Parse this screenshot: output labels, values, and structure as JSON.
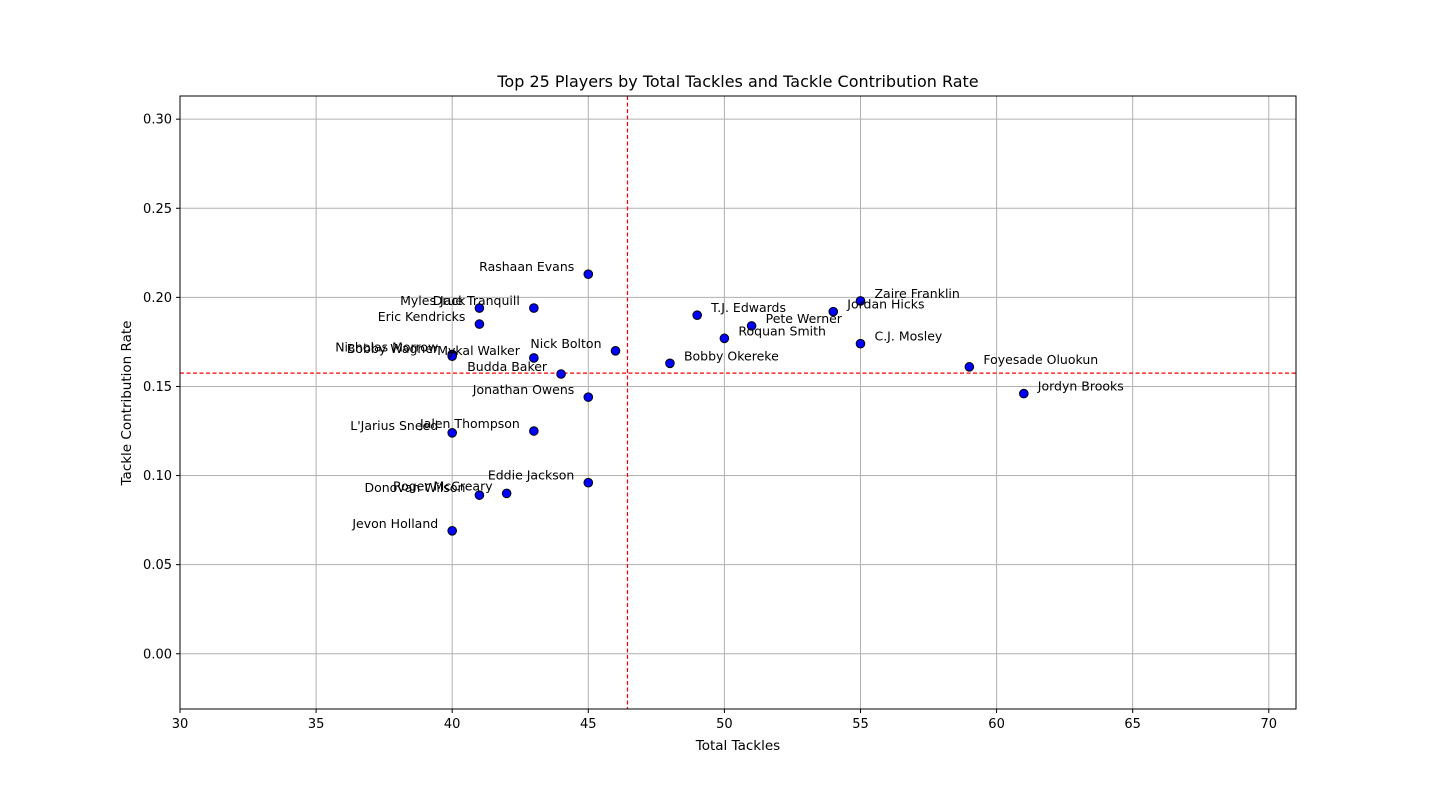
{
  "chart_data": {
    "type": "scatter",
    "title": "Top 25 Players by Total Tackles and Tackle Contribution Rate",
    "xlabel": "Total Tackles",
    "ylabel": "Tackle Contribution Rate",
    "xlim": [
      30,
      71
    ],
    "ylim": [
      -0.031,
      0.313
    ],
    "x_ticks": [
      30,
      35,
      40,
      45,
      50,
      55,
      60,
      65,
      70
    ],
    "y_ticks": [
      0.0,
      0.05,
      0.1,
      0.15,
      0.2,
      0.25,
      0.3
    ],
    "x_tick_labels": [
      "30",
      "35",
      "40",
      "45",
      "50",
      "55",
      "60",
      "65",
      "70"
    ],
    "y_tick_labels": [
      "0.00",
      "0.05",
      "0.10",
      "0.15",
      "0.20",
      "0.25",
      "0.30"
    ],
    "grid": true,
    "reference_lines": {
      "vertical_x": 46.44,
      "horizontal_y": 0.1575,
      "color": "#ff0000",
      "style": "dashed"
    },
    "marker_color": "#0000ff",
    "marker_edge_color": "#000000",
    "points": [
      {
        "label": "Rashaan Evans",
        "x": 45,
        "y": 0.213,
        "align": "left"
      },
      {
        "label": "Myles Jack",
        "x": 41,
        "y": 0.194,
        "align": "left"
      },
      {
        "label": "Drue Tranquill",
        "x": 43,
        "y": 0.194,
        "align": "left"
      },
      {
        "label": "Eric Kendricks",
        "x": 41,
        "y": 0.185,
        "align": "left"
      },
      {
        "label": "Nicholas Morrow",
        "x": 40,
        "y": 0.168,
        "align": "left"
      },
      {
        "label": "Bobby Wagner",
        "x": 40,
        "y": 0.167,
        "align": "left"
      },
      {
        "label": "Mykal Walker",
        "x": 43,
        "y": 0.166,
        "align": "left"
      },
      {
        "label": "Nick Bolton",
        "x": 46,
        "y": 0.17,
        "align": "left"
      },
      {
        "label": "Budda Baker",
        "x": 44,
        "y": 0.157,
        "align": "left"
      },
      {
        "label": "Jonathan Owens",
        "x": 45,
        "y": 0.144,
        "align": "left"
      },
      {
        "label": "L'Jarius Sneed",
        "x": 40,
        "y": 0.124,
        "align": "left"
      },
      {
        "label": "Jalen Thompson",
        "x": 43,
        "y": 0.125,
        "align": "left"
      },
      {
        "label": "Eddie Jackson",
        "x": 45,
        "y": 0.096,
        "align": "left"
      },
      {
        "label": "Roger McCreary",
        "x": 42,
        "y": 0.09,
        "align": "left"
      },
      {
        "label": "Donovan Wilson",
        "x": 41,
        "y": 0.089,
        "align": "left"
      },
      {
        "label": "Jevon Holland",
        "x": 40,
        "y": 0.069,
        "align": "left"
      },
      {
        "label": "T.J. Edwards",
        "x": 49,
        "y": 0.19,
        "align": "right"
      },
      {
        "label": "Pete Werner",
        "x": 51,
        "y": 0.184,
        "align": "right"
      },
      {
        "label": "Jordan Hicks",
        "x": 54,
        "y": 0.192,
        "align": "right"
      },
      {
        "label": "Zaire Franklin",
        "x": 55,
        "y": 0.198,
        "align": "right"
      },
      {
        "label": "Roquan Smith",
        "x": 50,
        "y": 0.177,
        "align": "right"
      },
      {
        "label": "C.J. Mosley",
        "x": 55,
        "y": 0.174,
        "align": "right"
      },
      {
        "label": "Bobby Okereke",
        "x": 48,
        "y": 0.163,
        "align": "right"
      },
      {
        "label": "Foyesade Oluokun",
        "x": 59,
        "y": 0.161,
        "align": "right"
      },
      {
        "label": "Jordyn Brooks",
        "x": 61,
        "y": 0.146,
        "align": "right"
      }
    ]
  }
}
